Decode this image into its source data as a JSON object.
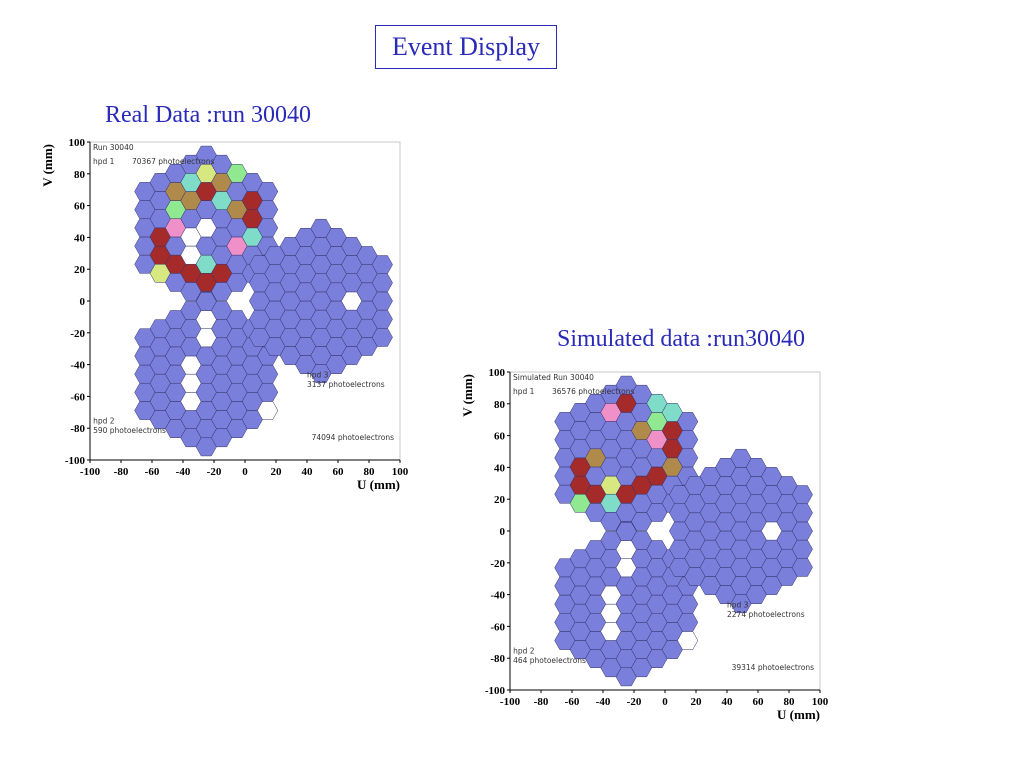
{
  "slide_title": "Event Display",
  "captions": [
    "Real Data :run 30040",
    "Simulated data :run30040"
  ],
  "colors": {
    "text": "#2a2ab8",
    "hex_fill": "#7b7fdc",
    "hex_empty": "#ffffff",
    "hits": {
      "red": "#a52a2a",
      "tan": "#b08a4a",
      "cyan": "#7fdcc8",
      "yellow": "#d8e880",
      "pink": "#f090c8",
      "green": "#90e890"
    }
  },
  "chart_data": [
    {
      "type": "event-display",
      "title": "",
      "xlabel": "U (mm)",
      "ylabel": "V (mm)",
      "xlim": [
        -100,
        100
      ],
      "ylim": [
        -100,
        100
      ],
      "x_ticks": [
        "-100",
        "-80",
        "-60",
        "-40",
        "-20",
        "0",
        "20",
        "40",
        "60",
        "80",
        "100"
      ],
      "y_ticks": [
        "100",
        "80",
        "60",
        "40",
        "20",
        "0",
        "-20",
        "-40",
        "-60",
        "-80",
        "-100"
      ],
      "run_label": "Run 30040",
      "total_label": "74094 photoelectrons",
      "hpds": [
        {
          "name": "hpd 1",
          "photoelectrons": "70367 photoelectrons",
          "center": [
            -25,
            46
          ],
          "hits": [
            [
              "red",
              0,
              -3
            ],
            [
              "red",
              1,
              -3
            ],
            [
              "red",
              2,
              -2
            ],
            [
              "red",
              3,
              -1
            ],
            [
              "red",
              -1,
              -2
            ],
            [
              "red",
              -2,
              -1
            ],
            [
              "red",
              -3,
              0
            ],
            [
              "red",
              -3,
              1
            ],
            [
              "red",
              0,
              2
            ],
            [
              "red",
              1,
              1
            ],
            [
              "red",
              3,
              0
            ],
            [
              "tan",
              -1,
              2
            ],
            [
              "tan",
              2,
              0
            ],
            [
              "tan",
              1,
              2
            ],
            [
              "tan",
              -2,
              3
            ],
            [
              "cyan",
              -1,
              3
            ],
            [
              "cyan",
              1,
              1
            ],
            [
              "cyan",
              3,
              -2
            ],
            [
              "cyan",
              0,
              -2
            ],
            [
              "yellow",
              0,
              3
            ],
            [
              "yellow",
              -3,
              -1
            ],
            [
              "pink",
              -2,
              1
            ],
            [
              "pink",
              2,
              -2
            ],
            [
              "green",
              2,
              2
            ],
            [
              "green",
              -2,
              2
            ]
          ],
          "empty": [
            [
              0,
              0
            ],
            [
              -1,
              0
            ],
            [
              -1,
              -1
            ]
          ]
        },
        {
          "name": "hpd 2",
          "photoelectrons": "590 photoelectrons",
          "center": [
            -25,
            -46
          ],
          "hits": [],
          "empty": [
            [
              0,
              3
            ],
            [
              0,
              2
            ],
            [
              -1,
              1
            ],
            [
              -1,
              0
            ],
            [
              -1,
              -1
            ],
            [
              4,
              -4
            ]
          ]
        },
        {
          "name": "hpd 3",
          "photoelectrons": "3137 photoelectrons",
          "center": [
            49,
            0
          ],
          "hits": [],
          "empty": [
            [
              2,
              -1
            ],
            [
              -2,
              -3
            ]
          ]
        }
      ]
    },
    {
      "type": "event-display",
      "title": "",
      "xlabel": "U (mm)",
      "ylabel": "V (mm)",
      "xlim": [
        -100,
        100
      ],
      "ylim": [
        -100,
        100
      ],
      "x_ticks": [
        "-100",
        "-80",
        "-60",
        "-40",
        "-20",
        "0",
        "20",
        "40",
        "60",
        "80",
        "100"
      ],
      "y_ticks": [
        "100",
        "80",
        "60",
        "40",
        "20",
        "0",
        "-20",
        "-40",
        "-60",
        "-80",
        "-100"
      ],
      "run_label": "Simulated Run 30040",
      "total_label": "39314 photoelectrons",
      "hpds": [
        {
          "name": "hpd 1",
          "photoelectrons": "36576 photoelectrons",
          "center": [
            -25,
            46
          ],
          "hits": [
            [
              "red",
              -1,
              3
            ],
            [
              "red",
              0,
              3
            ],
            [
              "red",
              -3,
              1
            ],
            [
              "red",
              -3,
              0
            ],
            [
              "red",
              -2,
              -1
            ],
            [
              "red",
              0,
              -2
            ],
            [
              "red",
              1,
              -2
            ],
            [
              "red",
              2,
              -2
            ],
            [
              "red",
              3,
              -1
            ],
            [
              "red",
              3,
              0
            ],
            [
              "pink",
              -1,
              3
            ],
            [
              "pink",
              2,
              0
            ],
            [
              "tan",
              1,
              1
            ],
            [
              "tan",
              -2,
              1
            ],
            [
              "tan",
              3,
              -2
            ],
            [
              "cyan",
              2,
              2
            ],
            [
              "cyan",
              -1,
              -2
            ],
            [
              "cyan",
              3,
              1
            ],
            [
              "green",
              2,
              1
            ],
            [
              "green",
              -3,
              -1
            ],
            [
              "yellow",
              -1,
              -1
            ]
          ],
          "empty": []
        },
        {
          "name": "hpd 2",
          "photoelectrons": "464 photoelectrons",
          "center": [
            -25,
            -46
          ],
          "hits": [],
          "empty": [
            [
              0,
              3
            ],
            [
              0,
              2
            ],
            [
              -1,
              1
            ],
            [
              -1,
              0
            ],
            [
              -1,
              -1
            ],
            [
              4,
              -4
            ]
          ]
        },
        {
          "name": "hpd 3",
          "photoelectrons": "2274 photoelectrons",
          "center": [
            49,
            0
          ],
          "hits": [],
          "empty": [
            [
              2,
              -1
            ],
            [
              -2,
              -3
            ]
          ]
        }
      ]
    }
  ]
}
